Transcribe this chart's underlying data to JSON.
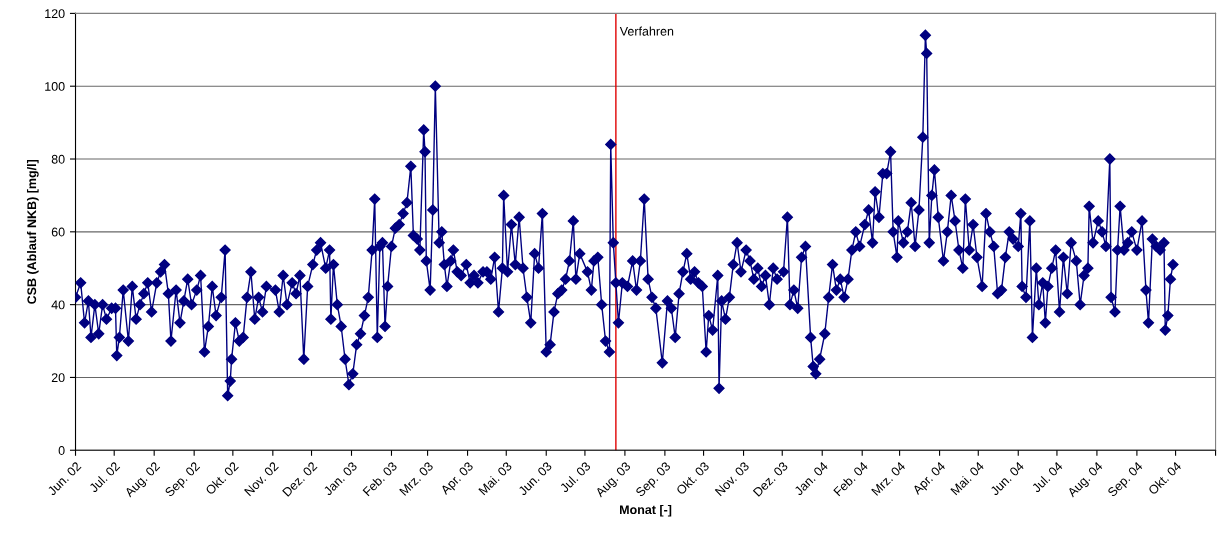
{
  "chart_data": {
    "type": "line",
    "xlabel": "Monat [-]",
    "ylabel": "CSB (Ablauf NKB) [mg/l]",
    "ylim": [
      0,
      120
    ],
    "yticks": [
      0,
      20,
      40,
      60,
      80,
      100,
      120
    ],
    "grid": "y",
    "marker": "diamond",
    "line_style": "solid",
    "legend": false,
    "xlim": [
      "2002-06-01",
      "2004-11-01"
    ],
    "xticks": [
      {
        "value": "2002-06-01",
        "label": "Jun. 02"
      },
      {
        "value": "2002-07-01",
        "label": "Jul. 02"
      },
      {
        "value": "2002-08-01",
        "label": "Aug. 02"
      },
      {
        "value": "2002-09-01",
        "label": "Sep. 02"
      },
      {
        "value": "2002-10-01",
        "label": "Okt. 02"
      },
      {
        "value": "2002-11-01",
        "label": "Nov. 02"
      },
      {
        "value": "2002-12-01",
        "label": "Dez. 02"
      },
      {
        "value": "2003-01-01",
        "label": "Jan. 03"
      },
      {
        "value": "2003-02-01",
        "label": "Feb. 03"
      },
      {
        "value": "2003-03-01",
        "label": "Mrz. 03"
      },
      {
        "value": "2003-04-01",
        "label": "Apr. 03"
      },
      {
        "value": "2003-05-01",
        "label": "Mai. 03"
      },
      {
        "value": "2003-06-01",
        "label": "Jun. 03"
      },
      {
        "value": "2003-07-01",
        "label": "Jul. 03"
      },
      {
        "value": "2003-08-01",
        "label": "Aug. 03"
      },
      {
        "value": "2003-09-01",
        "label": "Sep. 03"
      },
      {
        "value": "2003-10-01",
        "label": "Okt. 03"
      },
      {
        "value": "2003-11-01",
        "label": "Nov. 03"
      },
      {
        "value": "2003-12-01",
        "label": "Dez. 03"
      },
      {
        "value": "2004-01-01",
        "label": "Jan. 04"
      },
      {
        "value": "2004-02-01",
        "label": "Feb. 04"
      },
      {
        "value": "2004-03-01",
        "label": "Mrz. 04"
      },
      {
        "value": "2004-04-01",
        "label": "Apr. 04"
      },
      {
        "value": "2004-05-01",
        "label": "Mai. 04"
      },
      {
        "value": "2004-06-01",
        "label": "Jun. 04"
      },
      {
        "value": "2004-07-01",
        "label": "Jul. 04"
      },
      {
        "value": "2004-08-01",
        "label": "Aug. 04"
      },
      {
        "value": "2004-09-01",
        "label": "Sep. 04"
      },
      {
        "value": "2004-10-01",
        "label": "Okt. 04"
      },
      {
        "value": "2004-11-01",
        "label": null
      }
    ],
    "ref_lines": [
      {
        "axis": "x",
        "value": "2003-07-25",
        "label": "Verfahren",
        "color": "#e00000"
      }
    ],
    "series": [
      {
        "color": "#000080",
        "x": [
          "2002-06-01",
          "2002-06-05",
          "2002-06-08",
          "2002-06-11",
          "2002-06-13",
          "2002-06-16",
          "2002-06-19",
          "2002-06-22",
          "2002-06-25",
          "2002-06-29",
          "2002-07-02",
          "2002-07-03",
          "2002-07-05",
          "2002-07-08",
          "2002-07-12",
          "2002-07-15",
          "2002-07-18",
          "2002-07-21",
          "2002-07-24",
          "2002-07-27",
          "2002-07-30",
          "2002-08-03",
          "2002-08-06",
          "2002-08-09",
          "2002-08-12",
          "2002-08-14",
          "2002-08-18",
          "2002-08-21",
          "2002-08-24",
          "2002-08-27",
          "2002-08-30",
          "2002-09-03",
          "2002-09-06",
          "2002-09-09",
          "2002-09-12",
          "2002-09-15",
          "2002-09-18",
          "2002-09-22",
          "2002-09-25",
          "2002-09-27",
          "2002-09-29",
          "2002-09-30",
          "2002-10-03",
          "2002-10-06",
          "2002-10-09",
          "2002-10-12",
          "2002-10-15",
          "2002-10-18",
          "2002-10-21",
          "2002-10-24",
          "2002-10-27",
          "2002-11-03",
          "2002-11-06",
          "2002-11-09",
          "2002-11-12",
          "2002-11-16",
          "2002-11-19",
          "2002-11-22",
          "2002-11-25",
          "2002-11-28",
          "2002-12-02",
          "2002-12-05",
          "2002-12-08",
          "2002-12-12",
          "2002-12-15",
          "2002-12-16",
          "2002-12-18",
          "2002-12-21",
          "2002-12-24",
          "2002-12-27",
          "2002-12-30",
          "2003-01-02",
          "2003-01-05",
          "2003-01-08",
          "2003-01-11",
          "2003-01-14",
          "2003-01-17",
          "2003-01-19",
          "2003-01-21",
          "2003-01-23",
          "2003-01-25",
          "2003-01-27",
          "2003-01-29",
          "2003-02-01",
          "2003-02-04",
          "2003-02-07",
          "2003-02-10",
          "2003-02-13",
          "2003-02-16",
          "2003-02-18",
          "2003-02-21",
          "2003-02-23",
          "2003-02-26",
          "2003-02-27",
          "2003-02-28",
          "2003-03-03",
          "2003-03-05",
          "2003-03-07",
          "2003-03-10",
          "2003-03-12",
          "2003-03-14",
          "2003-03-16",
          "2003-03-19",
          "2003-03-21",
          "2003-03-24",
          "2003-03-27",
          "2003-03-31",
          "2003-04-03",
          "2003-04-06",
          "2003-04-09",
          "2003-04-13",
          "2003-04-16",
          "2003-04-19",
          "2003-04-22",
          "2003-04-25",
          "2003-04-28",
          "2003-04-29",
          "2003-05-02",
          "2003-05-05",
          "2003-05-08",
          "2003-05-11",
          "2003-05-14",
          "2003-05-17",
          "2003-05-20",
          "2003-05-23",
          "2003-05-26",
          "2003-05-29",
          "2003-06-01",
          "2003-06-04",
          "2003-06-07",
          "2003-06-10",
          "2003-06-13",
          "2003-06-16",
          "2003-06-19",
          "2003-06-22",
          "2003-06-24",
          "2003-06-27",
          "2003-07-03",
          "2003-07-06",
          "2003-07-08",
          "2003-07-11",
          "2003-07-14",
          "2003-07-17",
          "2003-07-20",
          "2003-07-21",
          "2003-07-23",
          "2003-07-25",
          "2003-07-27",
          "2003-07-30",
          "2003-08-03",
          "2003-08-07",
          "2003-08-10",
          "2003-08-13",
          "2003-08-16",
          "2003-08-19",
          "2003-08-22",
          "2003-08-25",
          "2003-08-30",
          "2003-09-03",
          "2003-09-06",
          "2003-09-09",
          "2003-09-12",
          "2003-09-15",
          "2003-09-18",
          "2003-09-21",
          "2003-09-24",
          "2003-09-27",
          "2003-09-30",
          "2003-10-03",
          "2003-10-05",
          "2003-10-08",
          "2003-10-12",
          "2003-10-13",
          "2003-10-15",
          "2003-10-18",
          "2003-10-21",
          "2003-10-24",
          "2003-10-27",
          "2003-10-30",
          "2003-11-03",
          "2003-11-06",
          "2003-11-09",
          "2003-11-12",
          "2003-11-15",
          "2003-11-18",
          "2003-11-21",
          "2003-11-24",
          "2003-11-27",
          "2003-12-02",
          "2003-12-05",
          "2003-12-07",
          "2003-12-10",
          "2003-12-13",
          "2003-12-16",
          "2003-12-19",
          "2003-12-23",
          "2003-12-25",
          "2003-12-27",
          "2003-12-30",
          "2004-01-03",
          "2004-01-06",
          "2004-01-09",
          "2004-01-12",
          "2004-01-15",
          "2004-01-18",
          "2004-01-21",
          "2004-01-24",
          "2004-01-27",
          "2004-01-30",
          "2004-02-03",
          "2004-02-06",
          "2004-02-09",
          "2004-02-11",
          "2004-02-14",
          "2004-02-17",
          "2004-02-20",
          "2004-02-23",
          "2004-02-25",
          "2004-02-28",
          "2004-02-29",
          "2004-03-04",
          "2004-03-07",
          "2004-03-10",
          "2004-03-13",
          "2004-03-16",
          "2004-03-19",
          "2004-03-21",
          "2004-03-22",
          "2004-03-24",
          "2004-03-26",
          "2004-03-28",
          "2004-03-31",
          "2004-04-04",
          "2004-04-07",
          "2004-04-10",
          "2004-04-13",
          "2004-04-16",
          "2004-04-19",
          "2004-04-21",
          "2004-04-24",
          "2004-04-27",
          "2004-04-30",
          "2004-05-04",
          "2004-05-07",
          "2004-05-10",
          "2004-05-13",
          "2004-05-16",
          "2004-05-19",
          "2004-05-22",
          "2004-05-25",
          "2004-05-28",
          "2004-06-01",
          "2004-06-03",
          "2004-06-04",
          "2004-06-07",
          "2004-06-10",
          "2004-06-12",
          "2004-06-15",
          "2004-06-17",
          "2004-06-20",
          "2004-06-22",
          "2004-06-24",
          "2004-06-27",
          "2004-06-30",
          "2004-07-03",
          "2004-07-06",
          "2004-07-09",
          "2004-07-12",
          "2004-07-16",
          "2004-07-19",
          "2004-07-22",
          "2004-07-25",
          "2004-07-26",
          "2004-07-29",
          "2004-08-02",
          "2004-08-05",
          "2004-08-08",
          "2004-08-11",
          "2004-08-12",
          "2004-08-15",
          "2004-08-17",
          "2004-08-19",
          "2004-08-22",
          "2004-08-25",
          "2004-08-28",
          "2004-09-01",
          "2004-09-05",
          "2004-09-08",
          "2004-09-10",
          "2004-09-13",
          "2004-09-16",
          "2004-09-19",
          "2004-09-22",
          "2004-09-23",
          "2004-09-25",
          "2004-09-27",
          "2004-09-29"
        ],
        "values": [
          42,
          46,
          35,
          41,
          31,
          40,
          32,
          40,
          36,
          39,
          39,
          26,
          31,
          44,
          30,
          45,
          36,
          40,
          43,
          46,
          38,
          46,
          49,
          51,
          43,
          30,
          44,
          35,
          41,
          47,
          40,
          44,
          48,
          27,
          34,
          45,
          37,
          42,
          55,
          15,
          19,
          25,
          35,
          30,
          31,
          42,
          49,
          36,
          42,
          38,
          45,
          44,
          38,
          48,
          40,
          46,
          43,
          48,
          25,
          45,
          51,
          55,
          57,
          50,
          55,
          36,
          51,
          40,
          34,
          25,
          18,
          21,
          29,
          32,
          37,
          42,
          55,
          69,
          31,
          56,
          57,
          34,
          45,
          56,
          61,
          62,
          65,
          68,
          78,
          59,
          58,
          55,
          88,
          82,
          52,
          44,
          66,
          100,
          57,
          60,
          51,
          45,
          52,
          55,
          49,
          48,
          51,
          46,
          48,
          46,
          49,
          49,
          47,
          53,
          38,
          50,
          70,
          49,
          62,
          51,
          64,
          50,
          42,
          35,
          54,
          50,
          65,
          27,
          29,
          38,
          43,
          44,
          47,
          52,
          63,
          47,
          54,
          49,
          44,
          52,
          53,
          40,
          30,
          27,
          84,
          57,
          46,
          35,
          46,
          45,
          52,
          44,
          52,
          69,
          47,
          42,
          39,
          24,
          41,
          39,
          31,
          43,
          49,
          54,
          47,
          49,
          46,
          45,
          27,
          37,
          33,
          48,
          17,
          41,
          36,
          42,
          51,
          57,
          49,
          55,
          52,
          47,
          50,
          45,
          48,
          40,
          50,
          47,
          49,
          64,
          40,
          44,
          39,
          53,
          56,
          31,
          23,
          21,
          25,
          32,
          42,
          51,
          44,
          47,
          42,
          47,
          55,
          60,
          56,
          62,
          66,
          57,
          71,
          64,
          76,
          76,
          82,
          60,
          53,
          63,
          57,
          60,
          68,
          56,
          66,
          86,
          114,
          109,
          57,
          70,
          77,
          64,
          52,
          60,
          70,
          63,
          55,
          50,
          69,
          55,
          62,
          53,
          45,
          65,
          60,
          56,
          43,
          44,
          53,
          60,
          58,
          56,
          65,
          45,
          42,
          63,
          31,
          50,
          40,
          46,
          35,
          45,
          50,
          55,
          38,
          53,
          43,
          57,
          52,
          40,
          48,
          50,
          67,
          57,
          63,
          60,
          56,
          80,
          42,
          38,
          55,
          67,
          55,
          57,
          60,
          55,
          63,
          44,
          35,
          58,
          56,
          55,
          57,
          33,
          37,
          47,
          51
        ]
      }
    ]
  }
}
